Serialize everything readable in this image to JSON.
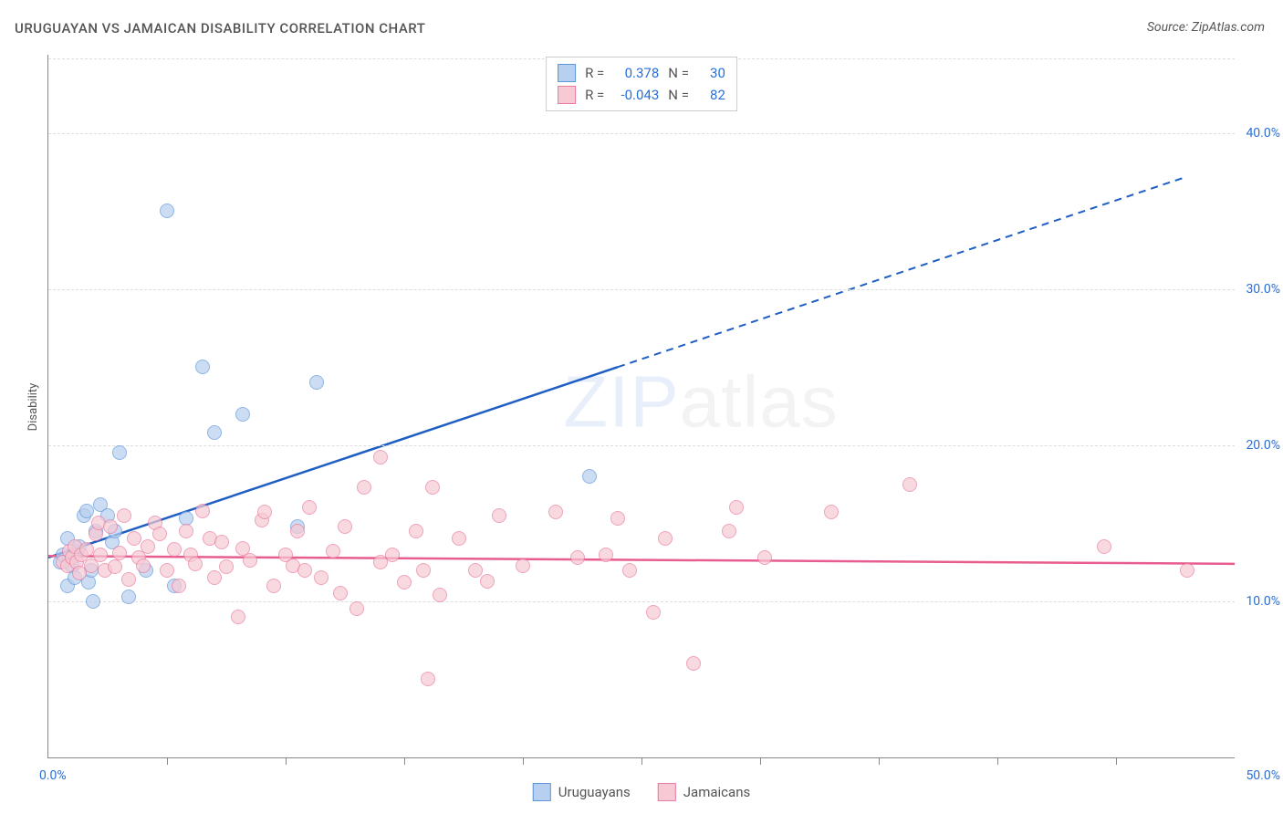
{
  "chart": {
    "type": "scatter",
    "title": "URUGUAYAN VS JAMAICAN DISABILITY CORRELATION CHART",
    "source_label": "Source: ZipAtlas.com",
    "ylabel": "Disability",
    "watermark_zip": "ZIP",
    "watermark_atlas": "atlas",
    "background_color": "#ffffff",
    "grid_color": "#dddddd",
    "axis_color": "#888888",
    "label_color": "#2a6fd6",
    "text_color": "#555555",
    "title_fontsize": 15,
    "tick_fontsize": 14,
    "xlim": [
      0,
      50
    ],
    "ylim": [
      0,
      45
    ],
    "ytick_values": [
      10,
      20,
      30,
      40
    ],
    "ytick_labels": [
      "10.0%",
      "20.0%",
      "30.0%",
      "40.0%"
    ],
    "xtick_values": [
      5,
      10,
      15,
      20,
      25,
      30,
      35,
      40,
      45
    ],
    "xorigin_label": "0.0%",
    "xmax_label": "50.0%",
    "marker_size": 14,
    "series": [
      {
        "name": "Uruguayans",
        "fill_color": "#b7d0ef",
        "stroke_color": "#5e96d9",
        "line_color": "#1f5fc4",
        "r_value": "0.378",
        "n_value": "30",
        "trend": {
          "x1": 0,
          "y1": 12.8,
          "x2_solid": 24,
          "y2_solid": 25.0,
          "x2_dash": 48,
          "y2_dash": 37.2
        },
        "points": [
          [
            0.5,
            12.5
          ],
          [
            0.6,
            13.0
          ],
          [
            0.8,
            11.0
          ],
          [
            0.8,
            14.0
          ],
          [
            1.0,
            12.3
          ],
          [
            1.1,
            11.5
          ],
          [
            1.2,
            13.2
          ],
          [
            1.3,
            13.5
          ],
          [
            1.5,
            15.5
          ],
          [
            1.6,
            15.8
          ],
          [
            1.7,
            11.2
          ],
          [
            1.8,
            12.0
          ],
          [
            1.9,
            10.0
          ],
          [
            2.0,
            14.5
          ],
          [
            2.2,
            16.2
          ],
          [
            2.5,
            15.5
          ],
          [
            2.7,
            13.8
          ],
          [
            2.8,
            14.5
          ],
          [
            3.0,
            19.5
          ],
          [
            3.4,
            10.3
          ],
          [
            4.1,
            12.0
          ],
          [
            5.0,
            35.0
          ],
          [
            5.3,
            11.0
          ],
          [
            5.8,
            15.3
          ],
          [
            6.5,
            25.0
          ],
          [
            7.0,
            20.8
          ],
          [
            8.2,
            22.0
          ],
          [
            10.5,
            14.8
          ],
          [
            11.3,
            24.0
          ],
          [
            22.8,
            18.0
          ]
        ]
      },
      {
        "name": "Jamaicans",
        "fill_color": "#f7c9d4",
        "stroke_color": "#e87ca0",
        "line_color": "#e85d8f",
        "r_value": "-0.043",
        "n_value": "82",
        "trend": {
          "x1": 0,
          "y1": 12.9,
          "x2_solid": 50,
          "y2_solid": 12.4,
          "x2_dash": 50,
          "y2_dash": 12.4
        },
        "points": [
          [
            0.6,
            12.5
          ],
          [
            0.8,
            12.3
          ],
          [
            0.9,
            13.2
          ],
          [
            1.0,
            12.8
          ],
          [
            1.1,
            13.5
          ],
          [
            1.2,
            12.5
          ],
          [
            1.3,
            11.8
          ],
          [
            1.4,
            13.0
          ],
          [
            1.6,
            13.3
          ],
          [
            1.8,
            12.3
          ],
          [
            2.0,
            14.3
          ],
          [
            2.1,
            15.0
          ],
          [
            2.2,
            13.0
          ],
          [
            2.4,
            12.0
          ],
          [
            2.6,
            14.8
          ],
          [
            2.8,
            12.2
          ],
          [
            3.0,
            13.1
          ],
          [
            3.2,
            15.5
          ],
          [
            3.4,
            11.4
          ],
          [
            3.6,
            14.0
          ],
          [
            3.8,
            12.8
          ],
          [
            4.0,
            12.3
          ],
          [
            4.2,
            13.5
          ],
          [
            4.5,
            15.0
          ],
          [
            4.7,
            14.3
          ],
          [
            5.0,
            12.0
          ],
          [
            5.3,
            13.3
          ],
          [
            5.5,
            11.0
          ],
          [
            5.8,
            14.5
          ],
          [
            6.0,
            13.0
          ],
          [
            6.2,
            12.4
          ],
          [
            6.5,
            15.8
          ],
          [
            6.8,
            14.0
          ],
          [
            7.0,
            11.5
          ],
          [
            7.3,
            13.8
          ],
          [
            7.5,
            12.2
          ],
          [
            8.0,
            9.0
          ],
          [
            8.2,
            13.4
          ],
          [
            8.5,
            12.6
          ],
          [
            9.0,
            15.2
          ],
          [
            9.1,
            15.7
          ],
          [
            9.5,
            11.0
          ],
          [
            10.0,
            13.0
          ],
          [
            10.3,
            12.3
          ],
          [
            10.5,
            14.5
          ],
          [
            10.8,
            12.0
          ],
          [
            11.0,
            16.0
          ],
          [
            11.5,
            11.5
          ],
          [
            12.0,
            13.2
          ],
          [
            12.3,
            10.5
          ],
          [
            12.5,
            14.8
          ],
          [
            13.0,
            9.5
          ],
          [
            13.3,
            17.3
          ],
          [
            14.0,
            12.5
          ],
          [
            14.0,
            19.2
          ],
          [
            14.5,
            13.0
          ],
          [
            15.0,
            11.2
          ],
          [
            15.5,
            14.5
          ],
          [
            15.8,
            12.0
          ],
          [
            16.0,
            5.0
          ],
          [
            16.2,
            17.3
          ],
          [
            16.5,
            10.4
          ],
          [
            17.3,
            14.0
          ],
          [
            18.0,
            12.0
          ],
          [
            18.5,
            11.3
          ],
          [
            19.0,
            15.5
          ],
          [
            20.0,
            12.3
          ],
          [
            21.4,
            15.7
          ],
          [
            22.3,
            12.8
          ],
          [
            23.5,
            13.0
          ],
          [
            24.0,
            15.3
          ],
          [
            24.5,
            12.0
          ],
          [
            25.5,
            9.3
          ],
          [
            26.0,
            14.0
          ],
          [
            27.2,
            6.0
          ],
          [
            28.7,
            14.5
          ],
          [
            29.0,
            16.0
          ],
          [
            30.2,
            12.8
          ],
          [
            33.0,
            15.7
          ],
          [
            36.3,
            17.5
          ],
          [
            44.5,
            13.5
          ],
          [
            48.0,
            12.0
          ]
        ]
      }
    ],
    "legend_top": {
      "r_label": "R =",
      "n_label": "N ="
    },
    "legend_bottom": [
      {
        "label": "Uruguayans",
        "fill": "#b7d0ef",
        "stroke": "#5e96d9"
      },
      {
        "label": "Jamaicans",
        "fill": "#f7c9d4",
        "stroke": "#e87ca0"
      }
    ]
  }
}
